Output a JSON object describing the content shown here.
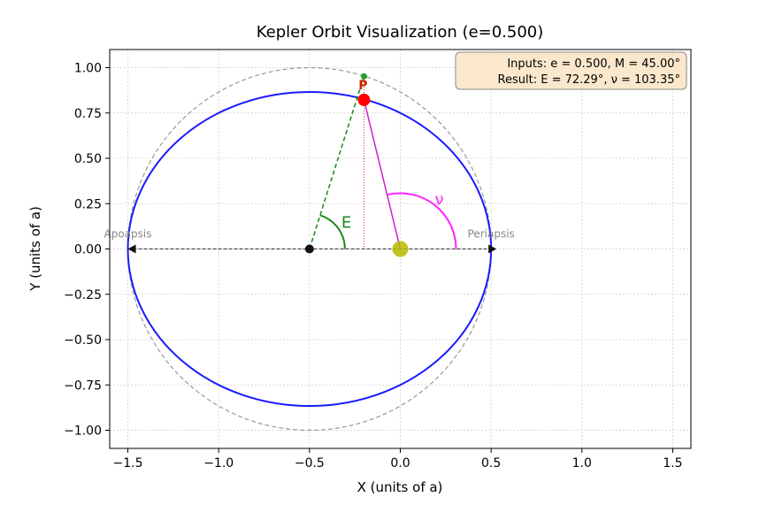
{
  "chart_data": {
    "type": "line",
    "title": "Kepler Orbit Visualization (e=0.500)",
    "xlabel": "X (units of a)",
    "ylabel": "Y (units of a)",
    "xlim": [
      -1.6,
      1.6
    ],
    "ylim": [
      -1.1,
      1.1
    ],
    "xticks": [
      -1.5,
      -1.0,
      -0.5,
      0.0,
      0.5,
      1.0,
      1.5
    ],
    "xtick_labels": [
      "−1.5",
      "−1.0",
      "−0.5",
      "0.0",
      "0.5",
      "1.0",
      "1.5"
    ],
    "yticks": [
      1.0,
      0.75,
      0.5,
      0.25,
      0.0,
      -0.25,
      -0.5,
      -0.75,
      -1.0
    ],
    "ytick_labels": [
      "1.00",
      "0.75",
      "0.50",
      "0.25",
      "0.00",
      "−0.25",
      "−0.50",
      "−0.75",
      "−1.00"
    ],
    "grid": true,
    "eccentricity": 0.5,
    "semi_major_axis": 1.0,
    "orbit_center": [
      -0.5,
      0.0
    ],
    "focus": [
      0.0,
      0.0
    ],
    "orbit_point": [
      -0.2,
      0.8224
    ],
    "auxiliary_point": [
      -0.2,
      0.9524
    ],
    "eccentric_anomaly_deg": 72.29,
    "true_anomaly_deg": 103.35,
    "apoapsis": [
      -1.5,
      0.0
    ],
    "periapsis": [
      0.5,
      0.0
    ],
    "labels": {
      "apoapsis": "Apoapsis",
      "periapsis": "Periapsis",
      "point": "P",
      "E": "E",
      "nu": "ν"
    },
    "info_box": {
      "line1": "Inputs: e = 0.500, M = 45.00°",
      "line2": "Result: E = 72.29°, ν = 103.35°"
    },
    "colors": {
      "orbit": "#1a1aff",
      "auxiliary_circle": "#999999",
      "E_line": "#1a8a1a",
      "nu_line": "#cc22cc",
      "nu_arc": "#ff22ff",
      "focus": "#b8b800",
      "point": "#ff0000",
      "info_box_bg": "#fbe8cc"
    }
  }
}
